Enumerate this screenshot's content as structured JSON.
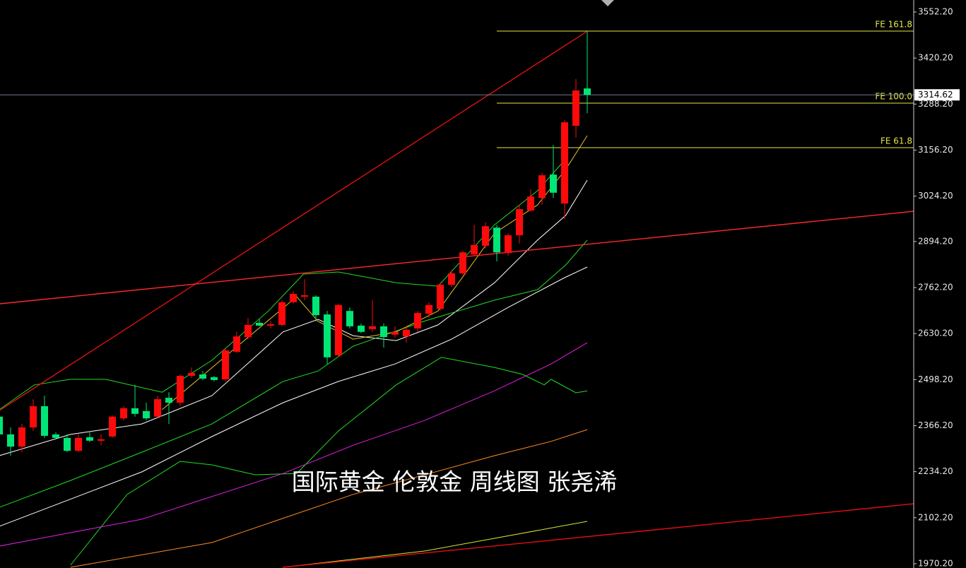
{
  "chart_data": {
    "type": "candlestick",
    "title": "国际黄金 伦敦金 周线图 张尧浠",
    "open": [
      2392,
      2341,
      2306,
      2361,
      2422,
      2341,
      2331,
      2294,
      2333,
      2323,
      2335,
      2387,
      2416,
      2408,
      2392,
      2446,
      2432,
      2509,
      2513,
      2505,
      2499,
      2578,
      2620,
      2661,
      2653,
      2655,
      2720,
      2736,
      2736,
      2685,
      2568,
      2695,
      2653,
      2643,
      2651,
      2627,
      2622,
      2645,
      2687,
      2701,
      2770,
      2803,
      2857,
      2882,
      2934,
      2861,
      2912,
      2983,
      3019,
      3086,
      3003,
      3226,
      3333
    ],
    "high": [
      2402,
      2361,
      2371,
      2442,
      2452,
      2347,
      2341,
      2341,
      2347,
      2341,
      2396,
      2422,
      2483,
      2432,
      2452,
      2462,
      2513,
      2533,
      2523,
      2509,
      2590,
      2635,
      2675,
      2671,
      2665,
      2726,
      2752,
      2786,
      2740,
      2695,
      2716,
      2705,
      2659,
      2726,
      2659,
      2651,
      2651,
      2695,
      2720,
      2776,
      2813,
      2867,
      2942,
      2949,
      2942,
      2918,
      2999,
      3044,
      3090,
      3171,
      3242,
      3360,
      3495
    ],
    "low": [
      2321,
      2280,
      2290,
      2351,
      2331,
      2327,
      2290,
      2290,
      2319,
      2310,
      2331,
      2381,
      2392,
      2381,
      2387,
      2371,
      2422,
      2503,
      2497,
      2493,
      2493,
      2574,
      2614,
      2651,
      2645,
      2651,
      2716,
      2726,
      2665,
      2543,
      2564,
      2645,
      2631,
      2635,
      2590,
      2618,
      2604,
      2635,
      2675,
      2695,
      2764,
      2797,
      2853,
      2874,
      2837,
      2853,
      2888,
      2979,
      2999,
      3019,
      2959,
      3192,
      3262
    ],
    "close": [
      2341,
      2306,
      2361,
      2422,
      2337,
      2331,
      2294,
      2331,
      2323,
      2327,
      2392,
      2416,
      2400,
      2387,
      2442,
      2432,
      2509,
      2517,
      2501,
      2497,
      2582,
      2622,
      2655,
      2653,
      2657,
      2720,
      2744,
      2740,
      2683,
      2562,
      2712,
      2651,
      2635,
      2651,
      2620,
      2635,
      2641,
      2689,
      2712,
      2770,
      2803,
      2863,
      2884,
      2938,
      2863,
      2912,
      2987,
      3023,
      3084,
      3034,
      3236,
      3327,
      3314.62
    ],
    "up_color": "#ff0a0a",
    "down_color": "#00e676",
    "ylim": [
      1958,
      3586.6
    ],
    "yticks": [
      {
        "value": 3552.2,
        "label": "3552.20"
      },
      {
        "value": 3420.2,
        "label": "3420.20"
      },
      {
        "value": 3288.2,
        "label": "3288.20"
      },
      {
        "value": 3156.2,
        "label": "3156.20"
      },
      {
        "value": 3024.2,
        "label": "3024.20"
      },
      {
        "value": 2894.2,
        "label": "2894.20"
      },
      {
        "value": 2762.2,
        "label": "2762.20"
      },
      {
        "value": 2630.2,
        "label": "2630.20"
      },
      {
        "value": 2498.2,
        "label": "2498.20"
      },
      {
        "value": 2366.2,
        "label": "2366.20"
      },
      {
        "value": 2234.2,
        "label": "2234.20"
      },
      {
        "value": 2102.2,
        "label": "2102.20"
      },
      {
        "value": 1970.2,
        "label": "1970.20"
      }
    ],
    "last_price": 3314.62,
    "last_price_color": "#6d7b8d",
    "fib_color": "#e6e64a",
    "fib_levels": [
      {
        "label": "FE 161.8",
        "value": 3497.5,
        "start": 44
      },
      {
        "label": "FE 100.0",
        "value": 3290.9,
        "start": 44
      },
      {
        "label": "FE 61.8",
        "value": 3163.2,
        "start": 44
      }
    ],
    "trendlines": [
      {
        "color": "#e01010",
        "x": [
          0.06,
          52
        ],
        "values": [
          2410.8,
          3497
        ]
      },
      {
        "color": "#ff2a2a",
        "x": [
          0.06,
          80.9
        ],
        "values": [
          2715.6,
          2980.9
        ]
      },
      {
        "color": "#e01010",
        "x": [
          25.06,
          80.9
        ],
        "values": [
          1960,
          2142.3
        ]
      }
    ],
    "indicators": [
      {
        "color": "#ffffff",
        "x": [
          0,
          6.3,
          12.6,
          18.8,
          25.1,
          28.2,
          31.3,
          35.1,
          38.8,
          43.8,
          47.6,
          50.1,
          52
        ],
        "values": [
          2280,
          2341,
          2371,
          2452,
          2635,
          2671,
          2624,
          2610,
          2655,
          2776,
          2898,
          2969,
          3070
        ]
      },
      {
        "color": "#ffffff",
        "x": [
          0,
          12.6,
          18.8,
          25.1,
          30,
          35,
          40,
          45,
          50,
          52
        ],
        "values": [
          2077.5,
          2233.5,
          2334.8,
          2432,
          2493,
          2543,
          2614,
          2705,
          2790.5,
          2820.9
        ]
      },
      {
        "color": "#22dd22",
        "x": [
          0,
          6.3,
          12.6,
          18.8,
          25.1,
          28.2,
          31.3,
          37.5,
          43.8,
          47.6,
          50.1,
          52
        ],
        "values": [
          2132,
          2209,
          2290,
          2371,
          2493,
          2523,
          2594,
          2665,
          2726,
          2756,
          2827,
          2898
        ]
      },
      {
        "color": "#e8c020",
        "x": [
          14.4,
          20.7,
          26.3,
          28.2,
          31.3,
          35.1,
          38.8,
          43.8,
          47.6,
          50.1,
          52
        ],
        "values": [
          2412,
          2584,
          2736,
          2665,
          2614,
          2635,
          2695,
          2918,
          2999,
          3101,
          3197.7
        ]
      },
      {
        "color": "#22dd22",
        "x": [
          0,
          3.1,
          6.3,
          9.4,
          14.4,
          18.8,
          23.8,
          26.9,
          30,
          35.1,
          38.8,
          43.8,
          47.6,
          50.1
        ],
        "values": [
          2412,
          2483,
          2499,
          2499,
          2462,
          2553.5,
          2695,
          2800.7,
          2806.7,
          2776,
          2766,
          2942,
          3039.7,
          3130.8
        ]
      },
      {
        "color": "#22dd22",
        "x": [
          6.3,
          11.3,
          16,
          18.8,
          22.6,
          26.3,
          30,
          35.1,
          39.1,
          43.8,
          46.3,
          48.2,
          48.8,
          51,
          52
        ],
        "values": [
          1966.1,
          2168.7,
          2263.9,
          2253.8,
          2225.4,
          2229,
          2351,
          2483,
          2562,
          2533,
          2513,
          2483,
          2499,
          2460.4,
          2466
        ]
      },
      {
        "color": "#e020e0",
        "x": [
          0,
          12.6,
          25.1,
          31.3,
          37.6,
          43.8,
          48.8,
          52
        ],
        "values": [
          2020.8,
          2097.8,
          2229,
          2310,
          2381,
          2466,
          2543,
          2604
        ]
      },
      {
        "color": "#ff8c20",
        "x": [
          6.3,
          18.8,
          31.3,
          37.6,
          43.8,
          48.8,
          52
        ],
        "values": [
          1960,
          2030.9,
          2169,
          2225,
          2280,
          2321,
          2354.9
        ]
      },
      {
        "color": "#d8e830",
        "x": [
          25.1,
          37.6,
          43.8,
          52
        ],
        "values": [
          1960,
          2006.6,
          2043.1,
          2091.7
        ]
      }
    ]
  }
}
